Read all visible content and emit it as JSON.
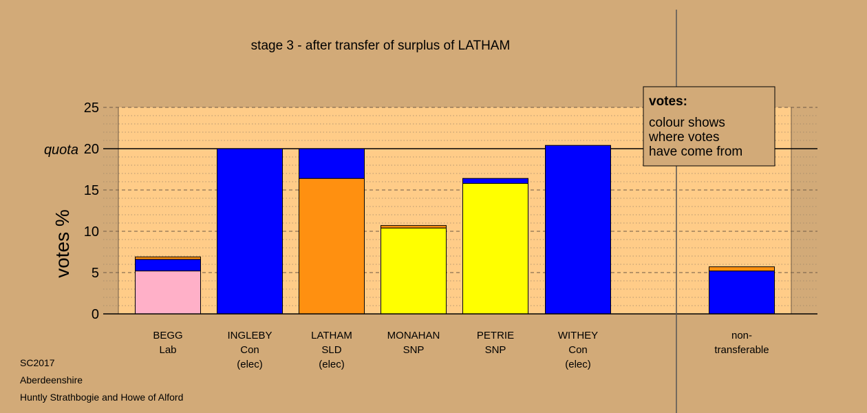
{
  "chart_data": {
    "type": "bar",
    "stacked": true,
    "title": "stage 3 - after transfer of surplus of LATHAM",
    "ylabel": "votes %",
    "ylim": [
      0,
      25
    ],
    "yticks": [
      "0",
      "5",
      "10",
      "15",
      "20",
      "25"
    ],
    "quota": {
      "label": "quota",
      "value": 20
    },
    "categories": [
      {
        "lines": [
          "BEGG",
          "Lab"
        ]
      },
      {
        "lines": [
          "INGLEBY",
          "Con",
          "(elec)"
        ]
      },
      {
        "lines": [
          "LATHAM",
          "SLD",
          "(elec)"
        ]
      },
      {
        "lines": [
          "MONAHAN",
          "SNP"
        ]
      },
      {
        "lines": [
          "PETRIE",
          "SNP"
        ]
      },
      {
        "lines": [
          "WITHEY",
          "Con",
          "(elec)"
        ]
      },
      {
        "lines": [
          "non-",
          "transferable"
        ]
      }
    ],
    "stacks": [
      [
        {
          "value": 5.2,
          "color": "#ffb0c8"
        },
        {
          "value": 1.4,
          "color": "#0000ff"
        },
        {
          "value": 0.3,
          "color": "#ff9010"
        }
      ],
      [
        {
          "value": 20.0,
          "color": "#0000ff"
        }
      ],
      [
        {
          "value": 16.4,
          "color": "#ff9010"
        },
        {
          "value": 3.6,
          "color": "#0000ff"
        }
      ],
      [
        {
          "value": 10.4,
          "color": "#ffff00"
        },
        {
          "value": 0.3,
          "color": "#ff9010"
        }
      ],
      [
        {
          "value": 15.8,
          "color": "#ffff00"
        },
        {
          "value": 0.6,
          "color": "#0000ff"
        }
      ],
      [
        {
          "value": 20.4,
          "color": "#0000ff"
        }
      ],
      [
        {
          "value": 5.2,
          "color": "#0000ff"
        },
        {
          "value": 0.5,
          "color": "#ff9010"
        }
      ]
    ],
    "legend": {
      "title": "votes:",
      "lines": [
        "colour shows",
        "where votes",
        "have come from"
      ],
      "placement": "top-right"
    },
    "footer": [
      "SC2017",
      "Aberdeenshire",
      "Huntly Strathbogie and Howe of Alford"
    ],
    "grid": true,
    "colors": {
      "background": "#d2aa78",
      "plot_background": "#ffcc88"
    }
  }
}
